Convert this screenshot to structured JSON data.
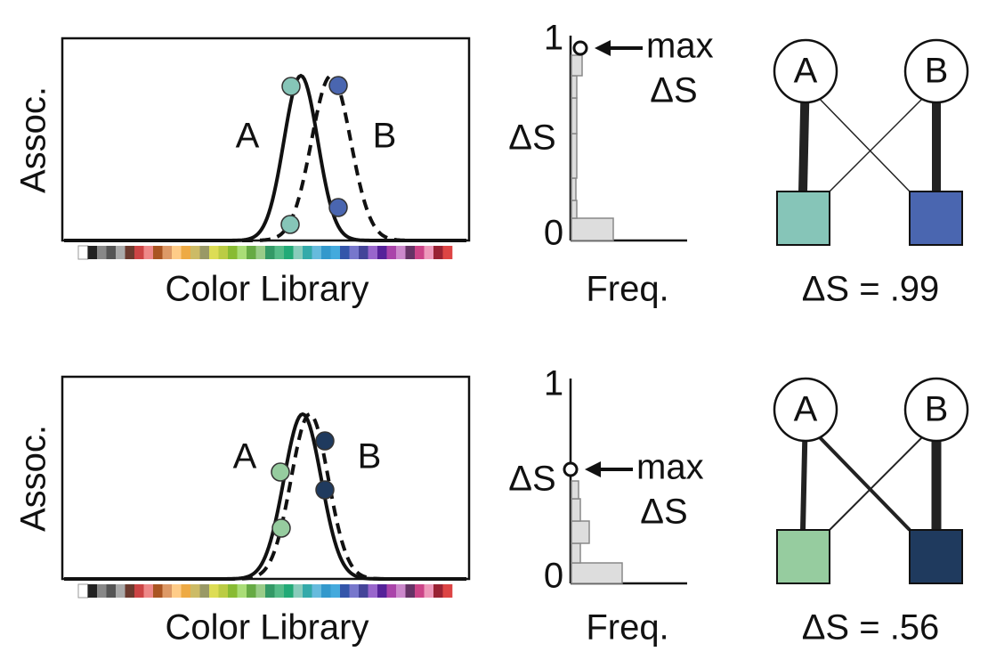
{
  "rows": [
    {
      "y_label": "Assoc.",
      "x_label": "Color Library",
      "label_a": "A",
      "label_b": "B",
      "hist_y_label": "ΔS",
      "hist_x_label": "Freq.",
      "tick_top": 1,
      "tick_bottom": 0,
      "max_label": "max",
      "max_sub": "ΔS",
      "node_a": "A",
      "node_b": "B",
      "result": "ΔS = .99"
    },
    {
      "y_label": "Assoc.",
      "x_label": "Color Library",
      "label_a": "A",
      "label_b": "B",
      "hist_y_label": "ΔS",
      "hist_x_label": "Freq.",
      "tick_top": 1,
      "tick_bottom": 0,
      "max_label": "max",
      "max_sub": "ΔS",
      "node_a": "A",
      "node_b": "B",
      "result": "ΔS = .56"
    }
  ]
}
